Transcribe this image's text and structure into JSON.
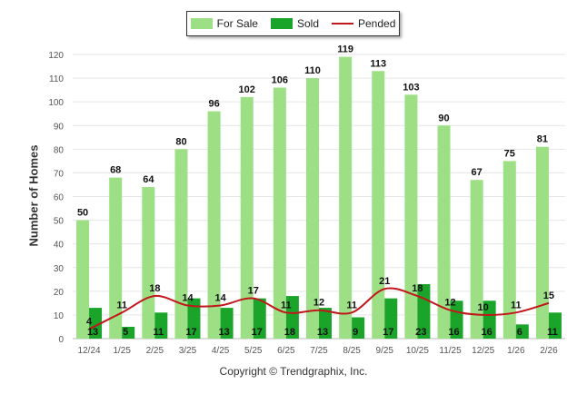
{
  "chart_data": {
    "type": "bar",
    "title": "",
    "ylabel": "Number of Homes",
    "xlabel": "",
    "ylim": [
      0,
      120
    ],
    "yticks": [
      0,
      10,
      20,
      30,
      40,
      50,
      60,
      70,
      80,
      90,
      100,
      110,
      120
    ],
    "categories": [
      "12/24",
      "1/25",
      "2/25",
      "3/25",
      "4/25",
      "5/25",
      "6/25",
      "7/25",
      "8/25",
      "9/25",
      "10/25",
      "11/25",
      "12/25",
      "1/26",
      "2/26"
    ],
    "series": [
      {
        "name": "For Sale",
        "kind": "bar",
        "color": "#9ddf85",
        "values": [
          50,
          68,
          64,
          80,
          96,
          102,
          106,
          110,
          119,
          113,
          103,
          90,
          67,
          75,
          81
        ]
      },
      {
        "name": "Sold",
        "kind": "bar",
        "color": "#1aa52a",
        "values": [
          13,
          5,
          11,
          17,
          13,
          17,
          18,
          13,
          9,
          17,
          23,
          16,
          16,
          6,
          11
        ]
      },
      {
        "name": "Pended",
        "kind": "line",
        "color": "#c0171b",
        "values": [
          4,
          11,
          18,
          14,
          14,
          17,
          11,
          12,
          11,
          21,
          18,
          12,
          10,
          11,
          15
        ]
      }
    ],
    "legend": "top-center"
  },
  "footer": {
    "copyright": "Copyright © Trendgraphix, Inc."
  }
}
